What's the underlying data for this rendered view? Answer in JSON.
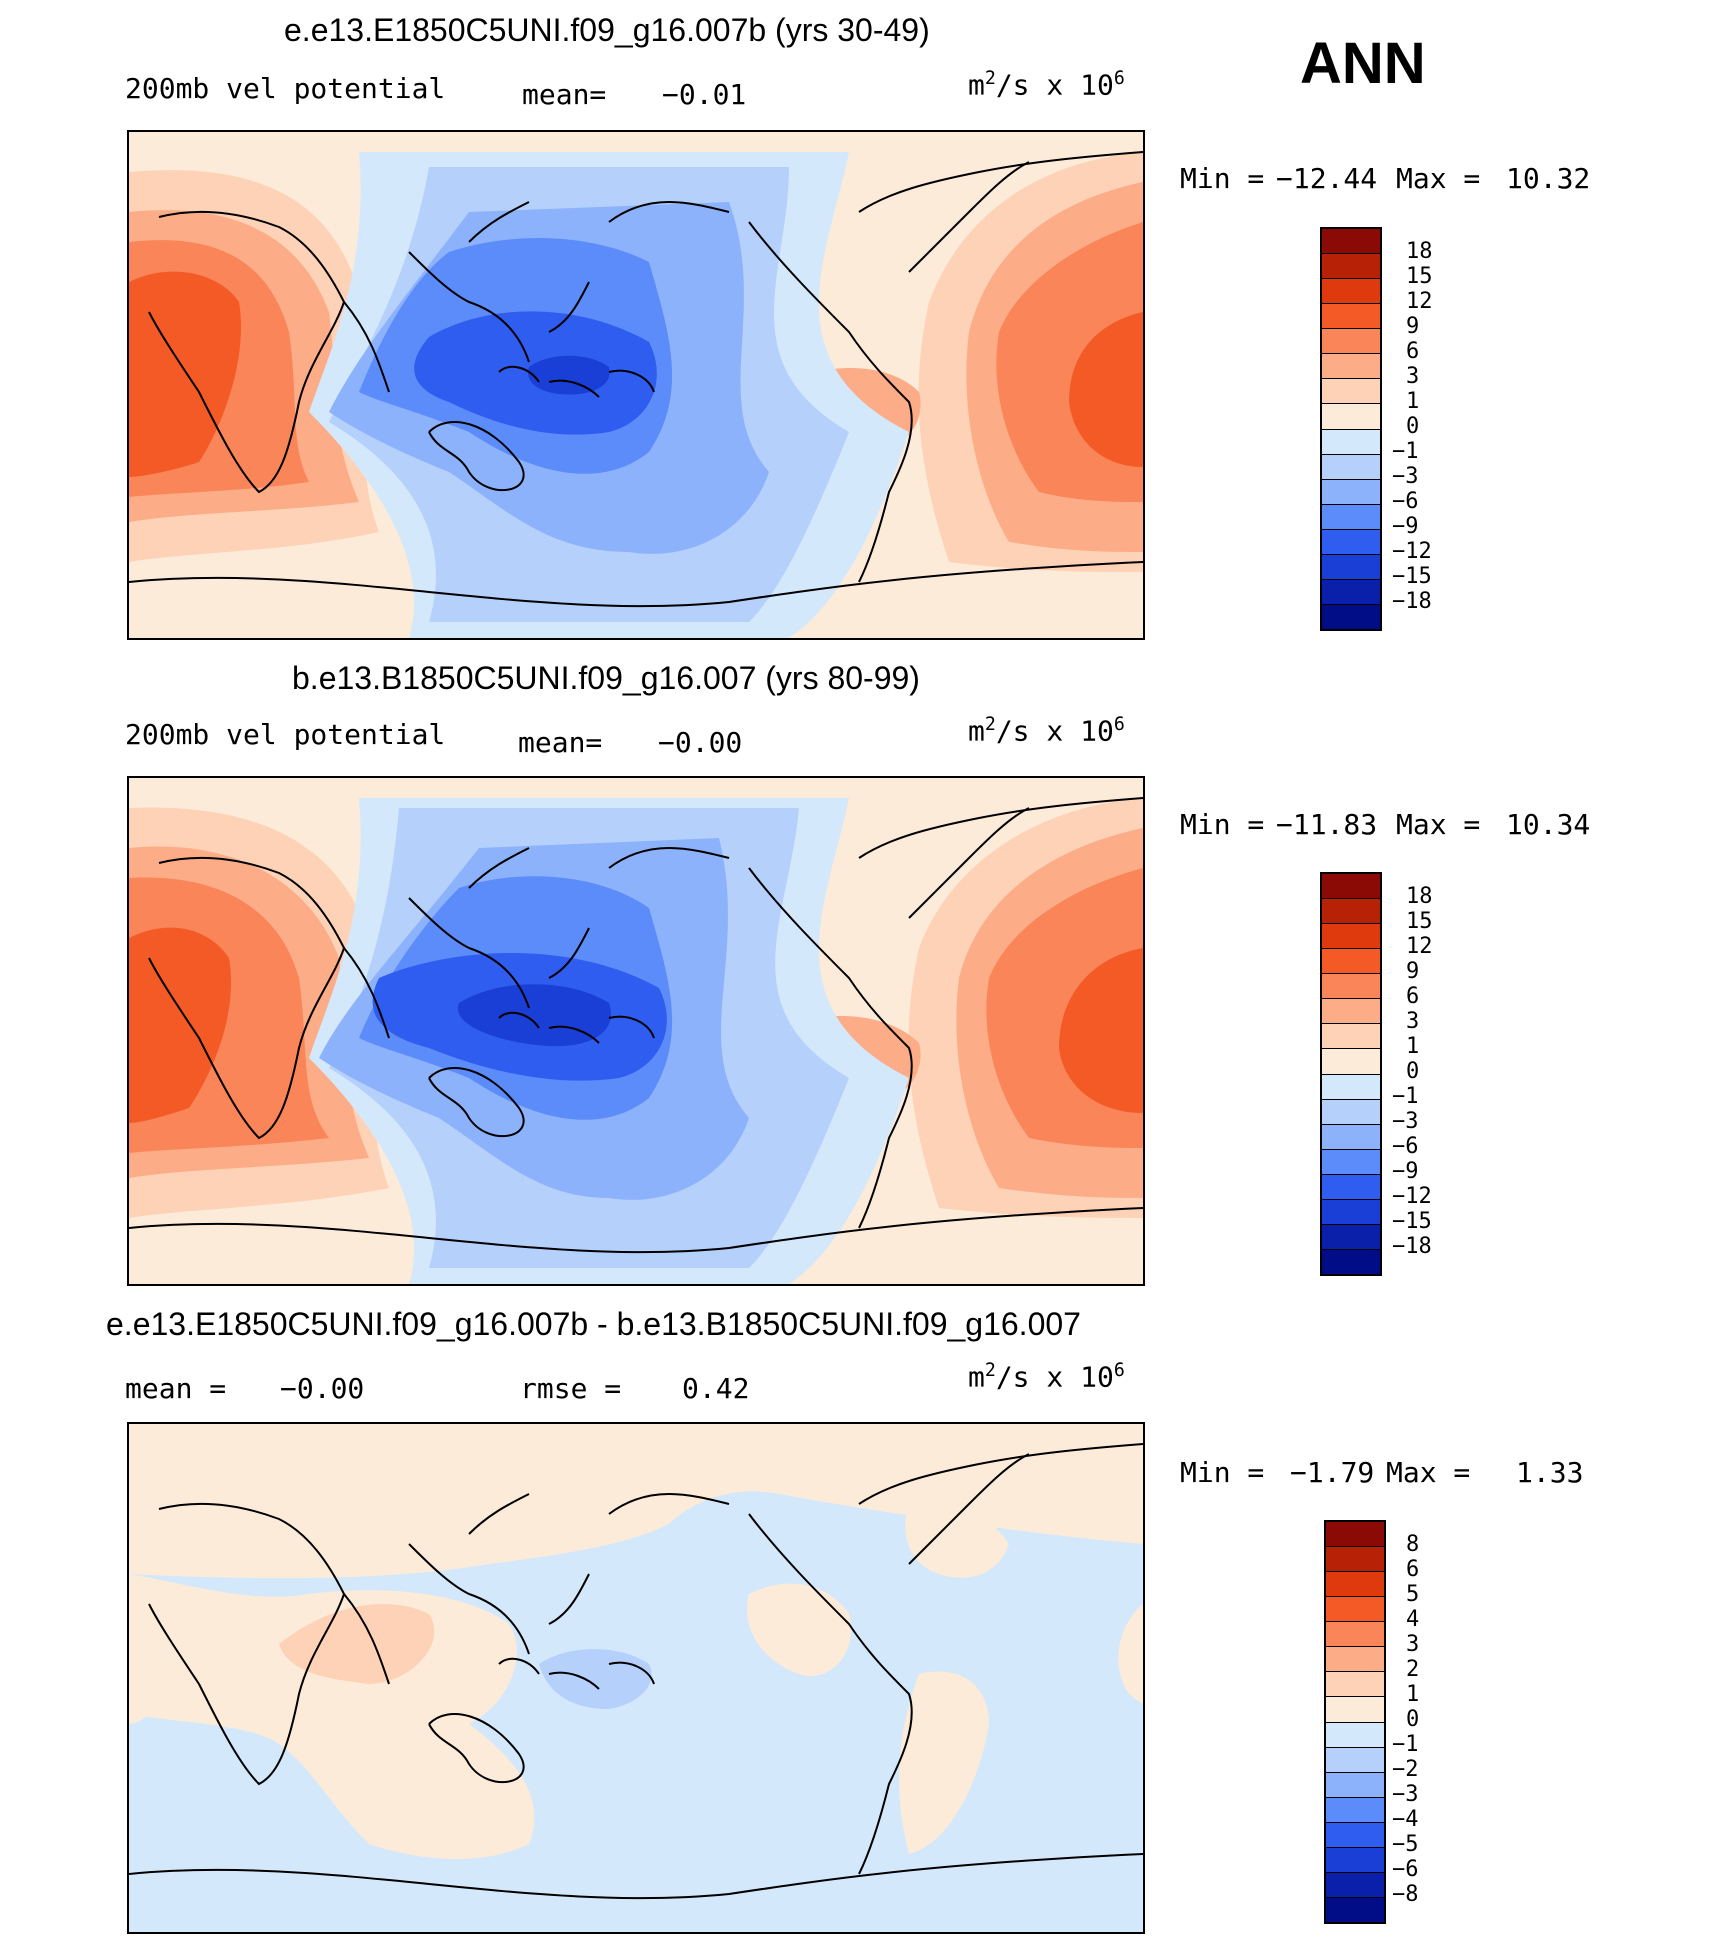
{
  "season": "ANN",
  "units": {
    "base": "m",
    "exp1": "2",
    "mid": "/s x 10",
    "exp2": "6"
  },
  "panels": [
    {
      "title": "e.e13.E1850C5UNI.f09_g16.007b (yrs 30-49)",
      "left_label": "200mb vel potential",
      "stat_label": "mean=",
      "stat_value": "−0.01",
      "min_label": "Min =",
      "min_value": "−12.44",
      "max_label": "Max =",
      "max_value": "10.32",
      "colorbar": {
        "labels": [
          "18",
          "15",
          "12",
          "9",
          "6",
          "3",
          "1",
          "0",
          "−1",
          "−3",
          "−6",
          "−9",
          "−12",
          "−15",
          "−18"
        ],
        "colors": [
          "#8b0a06",
          "#b72105",
          "#de3a0d",
          "#f45a26",
          "#f98558",
          "#fcac86",
          "#fdd2b6",
          "#fdebd9",
          "#d4e8fb",
          "#b4d0fb",
          "#8db2fc",
          "#5c8cfa",
          "#2f5df0",
          "#1a3fd6",
          "#0a20aa",
          "#000d86"
        ]
      }
    },
    {
      "title": "b.e13.B1850C5UNI.f09_g16.007 (yrs 80-99)",
      "left_label": "200mb vel potential",
      "stat_label": "mean=",
      "stat_value": "−0.00",
      "min_label": "Min =",
      "min_value": "−11.83",
      "max_label": "Max =",
      "max_value": "10.34",
      "colorbar": {
        "labels": [
          "18",
          "15",
          "12",
          "9",
          "6",
          "3",
          "1",
          "0",
          "−1",
          "−3",
          "−6",
          "−9",
          "−12",
          "−15",
          "−18"
        ],
        "colors": [
          "#8b0a06",
          "#b72105",
          "#de3a0d",
          "#f45a26",
          "#f98558",
          "#fcac86",
          "#fdd2b6",
          "#fdebd9",
          "#d4e8fb",
          "#b4d0fb",
          "#8db2fc",
          "#5c8cfa",
          "#2f5df0",
          "#1a3fd6",
          "#0a20aa",
          "#000d86"
        ]
      }
    },
    {
      "title": "e.e13.E1850C5UNI.f09_g16.007b - b.e13.B1850C5UNI.f09_g16.007",
      "left_label": "mean =",
      "left_value": "−0.00",
      "stat_label": "rmse =",
      "stat_value": "0.42",
      "min_label": "Min =",
      "min_value": "−1.79",
      "max_label": "Max =",
      "max_value": "1.33",
      "colorbar": {
        "labels": [
          "8",
          "6",
          "5",
          "4",
          "3",
          "2",
          "1",
          "0",
          "−1",
          "−2",
          "−3",
          "−4",
          "−5",
          "−6",
          "−8"
        ],
        "colors": [
          "#8b0a06",
          "#b72105",
          "#de3a0d",
          "#f45a26",
          "#f98558",
          "#fcac86",
          "#fdd2b6",
          "#fdebd9",
          "#d4e8fb",
          "#b4d0fb",
          "#8db2fc",
          "#5c8cfa",
          "#2f5df0",
          "#1a3fd6",
          "#0a20aa",
          "#000d86"
        ]
      }
    }
  ]
}
